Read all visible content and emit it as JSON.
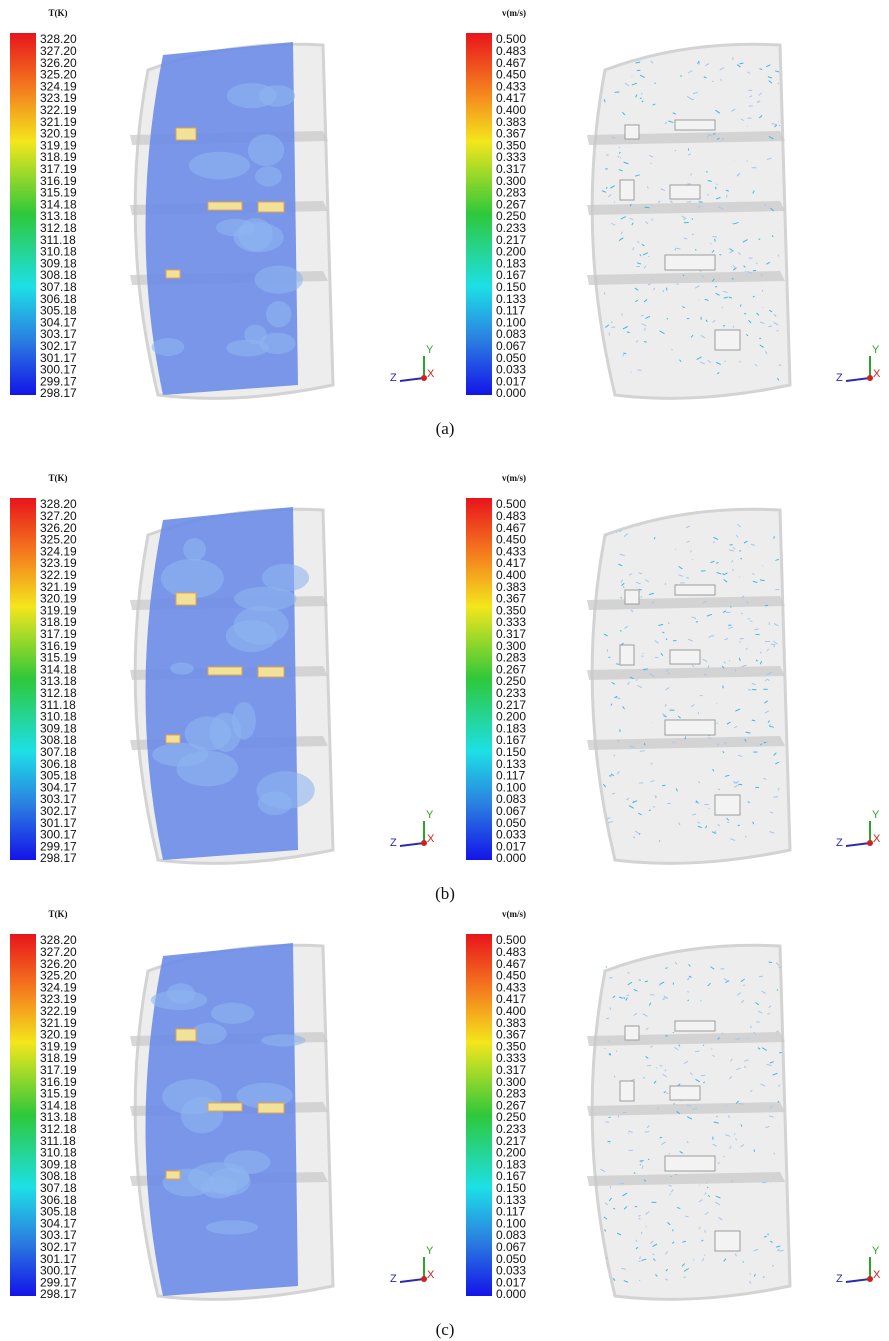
{
  "temperature_scale": {
    "title": "T(K)",
    "labels": [
      "328.20",
      "327.20",
      "326.20",
      "325.20",
      "324.19",
      "323.19",
      "322.19",
      "321.19",
      "320.19",
      "319.19",
      "318.19",
      "317.19",
      "316.19",
      "315.19",
      "314.18",
      "313.18",
      "312.18",
      "311.18",
      "310.18",
      "309.18",
      "308.18",
      "307.18",
      "306.18",
      "305.18",
      "304.17",
      "303.17",
      "302.17",
      "301.17",
      "300.17",
      "299.17",
      "298.17"
    ]
  },
  "velocity_scale": {
    "title": "v(m/s)",
    "labels": [
      "0.500",
      "0.483",
      "0.467",
      "0.450",
      "0.433",
      "0.417",
      "0.400",
      "0.383",
      "0.367",
      "0.350",
      "0.333",
      "0.317",
      "0.300",
      "0.283",
      "0.267",
      "0.250",
      "0.233",
      "0.217",
      "0.200",
      "0.183",
      "0.167",
      "0.150",
      "0.133",
      "0.117",
      "0.100",
      "0.083",
      "0.067",
      "0.050",
      "0.033",
      "0.017",
      "0.000"
    ]
  },
  "axes": {
    "y": "Y",
    "z": "Z",
    "x": "X"
  },
  "panels": [
    {
      "caption": "(a)"
    },
    {
      "caption": "(b)"
    },
    {
      "caption": "(c)"
    }
  ]
}
